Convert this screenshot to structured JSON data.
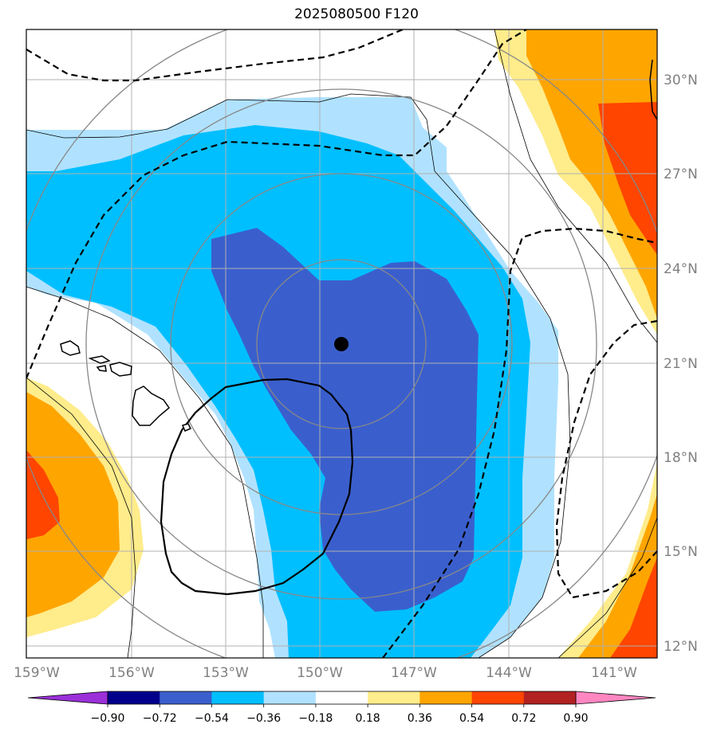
{
  "chart_data": {
    "type": "heatmap",
    "title": "2025080500 F120",
    "x_ticks": [
      "159°W",
      "156°W",
      "153°W",
      "150°W",
      "147°W",
      "144°W",
      "141°W"
    ],
    "y_ticks": [
      "30°N",
      "27°N",
      "24°N",
      "21°N",
      "18°N",
      "15°N",
      "12°N"
    ],
    "x_range": [
      -159,
      -139.8
    ],
    "y_range": [
      11.6,
      31.6
    ],
    "colorbar": {
      "levels": [
        -0.9,
        -0.72,
        -0.54,
        -0.36,
        -0.18,
        0.18,
        0.36,
        0.54,
        0.72,
        0.9
      ],
      "labels": [
        "−0.90",
        "−0.72",
        "−0.54",
        "−0.36",
        "−0.18",
        "0.18",
        "0.36",
        "0.54",
        "0.72",
        "0.90"
      ],
      "colors": [
        "#9b30d9",
        "#00008b",
        "#3a5fcd",
        "#00bfff",
        "#b0e2ff",
        "#ffffff",
        "#ffec8b",
        "#ffa500",
        "#ff4500",
        "#b22222",
        "#ff86c1"
      ],
      "extend": "both"
    },
    "center_marker": {
      "lon": -149.3,
      "lat": 21.6
    },
    "range_circles_deg": [
      2.7,
      5.5,
      8.7
    ],
    "grid": true
  }
}
